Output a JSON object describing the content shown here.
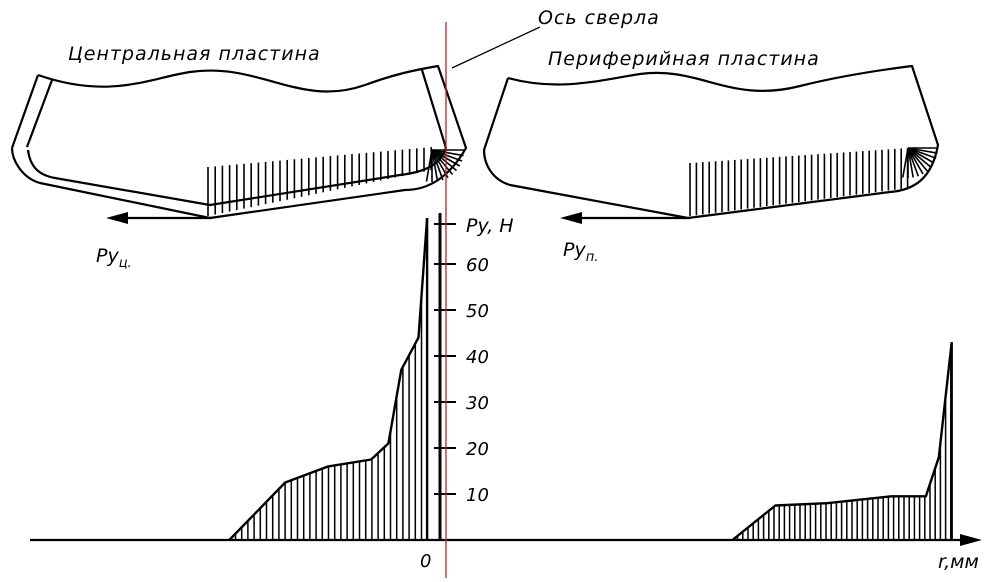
{
  "labels": {
    "axis_drill": "Ось сверла",
    "central_plate": "Центральная пластина",
    "peripheral_plate": "Периферийная пластина",
    "force_central_main": "Py",
    "force_central_sub": "ц.",
    "force_peripheral_main": "Py",
    "force_peripheral_sub": "п.",
    "y_axis": "Py,  H",
    "x_axis": "r,мм",
    "origin": "0"
  },
  "chart_data": {
    "type": "area",
    "ylabel": "Py,  H",
    "xlabel": "r,мм",
    "yticks": [
      "10",
      "20",
      "30",
      "40",
      "50",
      "60"
    ],
    "ylim": [
      0,
      70
    ],
    "series": [
      {
        "values_xy": [
          [
            -4.9,
            0
          ],
          [
            -3.6,
            12.5
          ],
          [
            -2.6,
            16
          ],
          [
            -1.6,
            17.5
          ],
          [
            -1.2,
            21
          ],
          [
            -0.9,
            37
          ],
          [
            -0.5,
            44
          ],
          [
            -0.3,
            70
          ]
        ]
      },
      {
        "values_xy": [
          [
            6.8,
            0
          ],
          [
            7.8,
            7.5
          ],
          [
            9.0,
            8
          ],
          [
            10.5,
            9.5
          ],
          [
            11.3,
            9.5
          ],
          [
            11.6,
            18
          ],
          [
            11.9,
            43
          ]
        ]
      }
    ]
  },
  "colors": {
    "line": "#000000",
    "drill_axis": "#c0202a"
  }
}
